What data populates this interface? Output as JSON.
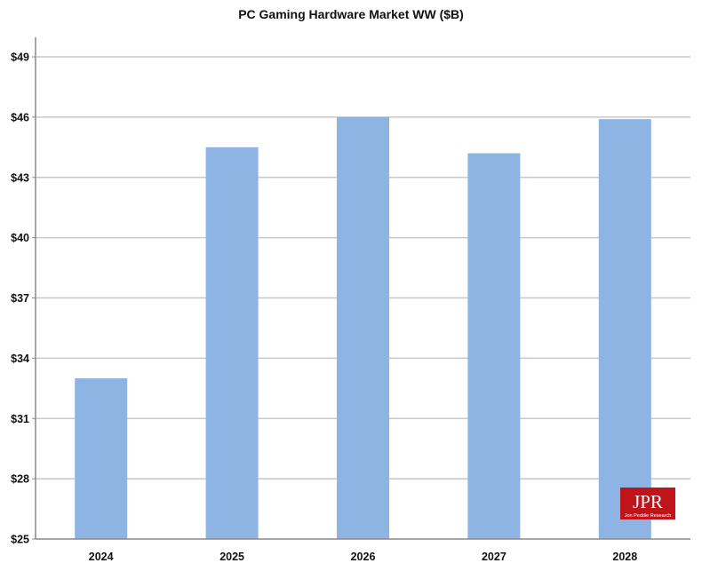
{
  "chart_data": {
    "type": "bar",
    "title": "PC Gaming  Hardware Market WW ($B)",
    "categories": [
      "2024",
      "2025",
      "2026",
      "2027",
      "2028"
    ],
    "values": [
      33.0,
      44.5,
      46.0,
      44.2,
      45.9
    ],
    "xlabel": "",
    "ylabel": "",
    "ylim": [
      25,
      50
    ],
    "yticks": [
      25,
      28,
      31,
      34,
      37,
      40,
      43,
      46,
      49
    ],
    "ytick_labels": [
      "$25",
      "$28",
      "$31",
      "$34",
      "$37",
      "$40",
      "$43",
      "$46",
      "$49"
    ],
    "grid": true,
    "legend": "none",
    "bar_color": "#8eb4e3",
    "gridline_color": "#c8c8c8"
  },
  "logo": {
    "text": "JPR",
    "subtext": "Jon Peddie Research",
    "bg_color": "#c0141b",
    "text_color": "#ffffff"
  }
}
